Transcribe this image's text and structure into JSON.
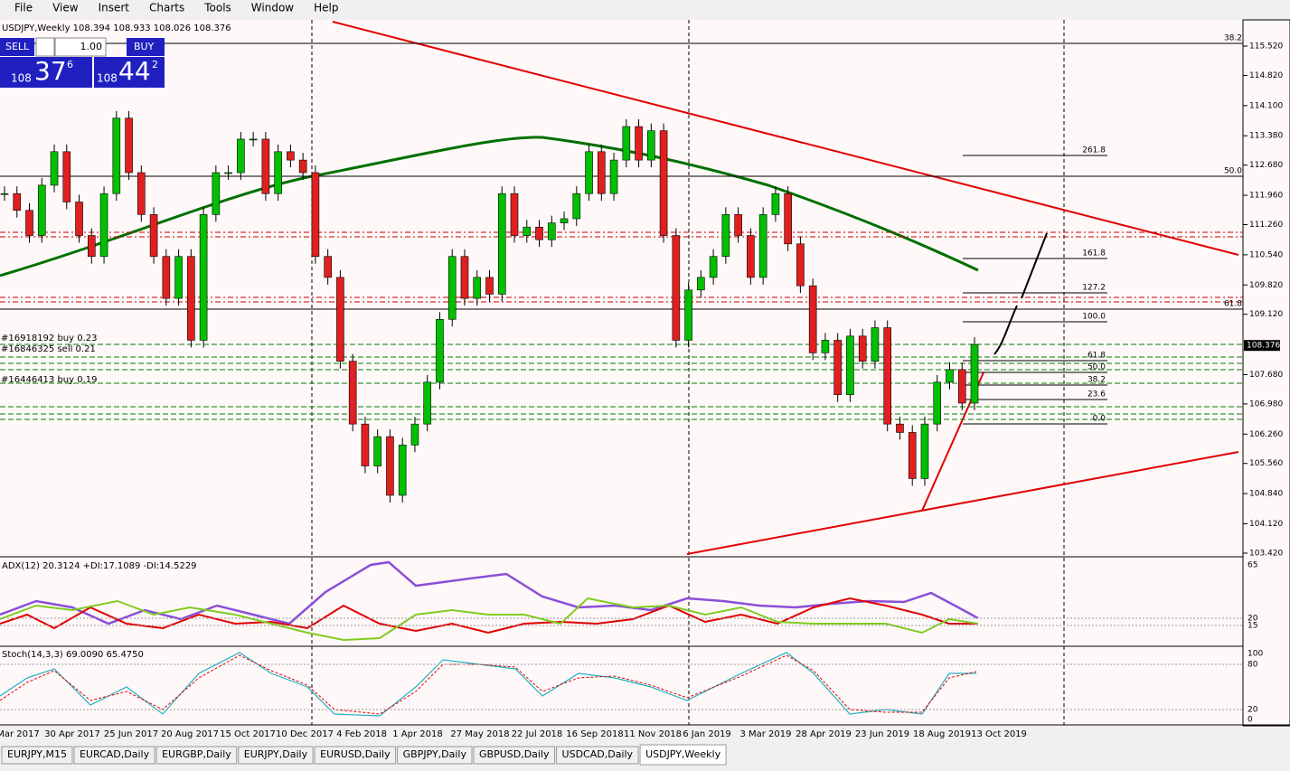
{
  "menu": [
    "File",
    "View",
    "Insert",
    "Charts",
    "Tools",
    "Window",
    "Help"
  ],
  "panel": {
    "sell": "SELL",
    "buy": "BUY",
    "lot": "1.00",
    "sell_big": "108",
    "sell_pips": "37",
    "sell_frac": "6",
    "buy_big": "108",
    "buy_pips": "44",
    "buy_frac": "2"
  },
  "chart": {
    "header": "USDJPY,Weekly  108.394 108.933 108.026 108.376",
    "yticks": [
      {
        "value": 115.52,
        "label": "115.520"
      },
      {
        "value": 114.82,
        "label": "114.820"
      },
      {
        "value": 114.1,
        "label": "114.100"
      },
      {
        "value": 113.38,
        "label": "113.380"
      },
      {
        "value": 112.68,
        "label": "112.680"
      },
      {
        "value": 111.96,
        "label": "111.960"
      },
      {
        "value": 111.26,
        "label": "111.260"
      },
      {
        "value": 110.54,
        "label": "110.540"
      },
      {
        "value": 109.82,
        "label": "109.820"
      },
      {
        "value": 109.12,
        "label": "109.120"
      },
      {
        "value": 107.68,
        "label": "107.680"
      },
      {
        "value": 106.98,
        "label": "106.980"
      },
      {
        "value": 106.26,
        "label": "106.260"
      },
      {
        "value": 105.56,
        "label": "105.560"
      },
      {
        "value": 104.84,
        "label": "104.840"
      },
      {
        "value": 104.12,
        "label": "104.120"
      },
      {
        "value": 103.42,
        "label": "103.420"
      }
    ],
    "current": {
      "value": 108.376,
      "label": "108.376"
    },
    "closes": [
      112.0,
      111.6,
      111.0,
      112.2,
      113.0,
      111.8,
      111.0,
      110.5,
      112.0,
      113.8,
      112.5,
      111.5,
      110.5,
      109.5,
      110.5,
      108.5,
      111.5,
      112.5,
      112.5,
      113.3,
      113.3,
      112.0,
      113.0,
      112.8,
      112.5,
      110.5,
      110.0,
      108.0,
      106.5,
      105.5,
      106.2,
      104.8,
      106.0,
      106.5,
      107.5,
      109.0,
      110.5,
      109.5,
      110.0,
      109.6,
      112.0,
      111.0,
      111.2,
      110.9,
      111.3,
      111.4,
      112.0,
      113.0,
      112.0,
      112.8,
      113.6,
      112.8,
      113.5,
      111.0,
      108.5,
      109.7,
      110.0,
      110.5,
      111.5,
      111.0,
      110.0,
      111.5,
      112.0,
      110.8,
      109.8,
      108.2,
      108.5,
      107.2,
      108.6,
      108.0,
      108.8,
      106.5,
      106.3,
      105.2,
      106.5,
      107.5,
      107.8,
      107.0,
      108.4
    ],
    "fib_right": [
      "261.8",
      "161.8",
      "127.2",
      "100.0",
      "61.8",
      "50.0",
      "38.2",
      "23.6",
      "0.0"
    ],
    "fib_top": [
      "38.2",
      "50.0",
      "61.8"
    ],
    "orders": [
      "#16918192 buy 0.23",
      "#16846325 sell 0.21",
      "#16446413 buy 0.19"
    ],
    "xlabels": [
      "Mar 2017",
      "30 Apr 2017",
      "25 Jun 2017",
      "20 Aug 2017",
      "15 Oct 2017",
      "10 Dec 2017",
      "4 Feb 2018",
      "1 Apr 2018",
      "27 May 2018",
      "22 Jul 2018",
      "16 Sep 2018",
      "11 Nov 2018",
      "6 Jan 2019",
      "3 Mar 2019",
      "28 Apr 2019",
      "23 Jun 2019",
      "18 Aug 2019",
      "13 Oct 2019"
    ]
  },
  "adx": {
    "label": "ADX(12) 20.3124 +DI:17.1089 -DI:14.5229",
    "scale": [
      "65",
      "20",
      "15"
    ]
  },
  "stoch": {
    "label": "Stoch(14,3,3) 69.0090 65.4750",
    "scale": [
      "100",
      "80",
      "20",
      "0"
    ]
  },
  "tabs": [
    "EURJPY,M15",
    "EURCAD,Daily",
    "EURGBP,Daily",
    "EURJPY,Daily",
    "EURUSD,Daily",
    "GBPJPY,Daily",
    "GBPUSD,Daily",
    "USDCAD,Daily",
    "USDJPY,Weekly"
  ]
}
